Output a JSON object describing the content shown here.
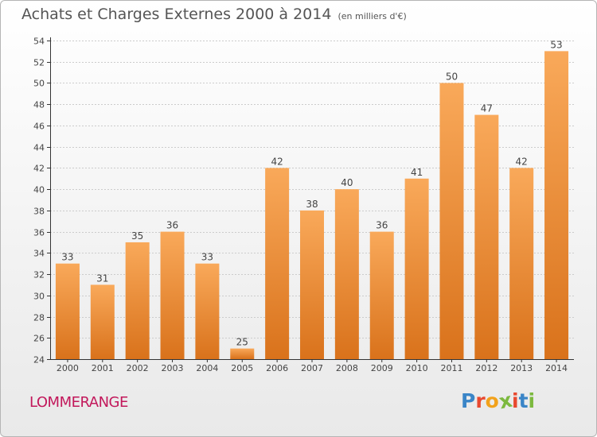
{
  "header": {
    "title": "Achats et Charges Externes 2000 à 2014",
    "subtitle": "(en milliers d'€)"
  },
  "footer": {
    "city": "LOMMERANGE",
    "logo_text": "Proxiti",
    "logo_colors": [
      "#3a85c7",
      "#e8492f",
      "#f2a21c",
      "#7cb93f",
      "#e8492f",
      "#3a85c7",
      "#7cb93f"
    ]
  },
  "colors": {
    "bar_light": "#f9a95a",
    "bar_dark": "#d9721b",
    "grid": "#cccccc",
    "axis": "#333333"
  },
  "chart_data": {
    "type": "bar",
    "categories": [
      "2000",
      "2001",
      "2002",
      "2003",
      "2004",
      "2005",
      "2006",
      "2007",
      "2008",
      "2009",
      "2010",
      "2011",
      "2012",
      "2013",
      "2014"
    ],
    "values": [
      33,
      31,
      35,
      36,
      33,
      25,
      42,
      38,
      40,
      36,
      41,
      50,
      47,
      42,
      53
    ],
    "yticks": [
      24,
      26,
      28,
      30,
      32,
      34,
      36,
      38,
      40,
      42,
      44,
      46,
      48,
      50,
      52,
      54
    ],
    "ylim": [
      24,
      54
    ],
    "grid": true
  }
}
